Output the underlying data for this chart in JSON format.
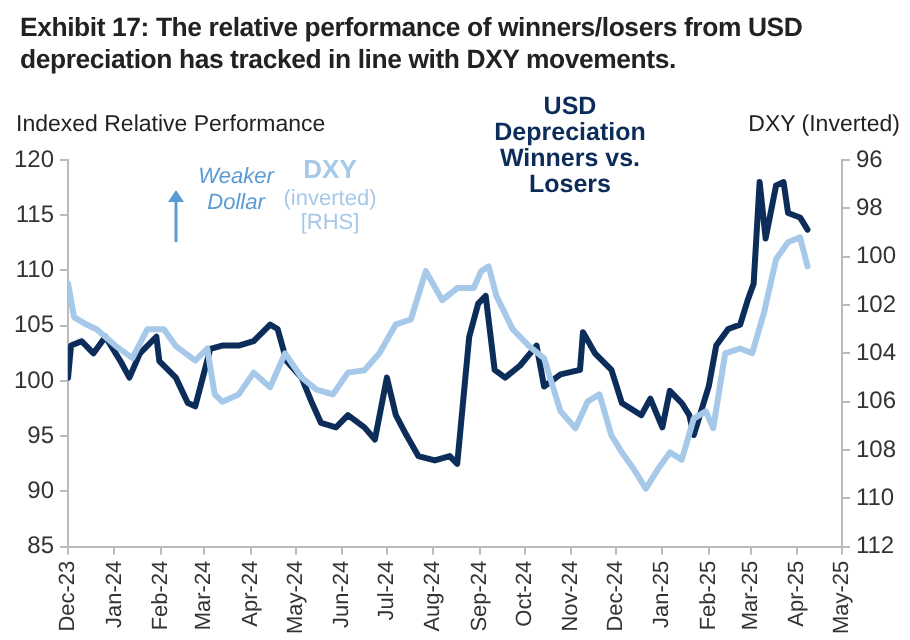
{
  "chart_data": {
    "type": "line",
    "title": "Exhibit 17: The relative performance of winners/losers from USD depreciation has tracked in line with DXY movements.",
    "ylabel": "Indexed Relative Performance",
    "y2label": "DXY (Inverted)",
    "xlim": [
      "2023-12",
      "2025-05"
    ],
    "xticks": [
      {
        "value": "2023-12",
        "label": "Dec-23"
      },
      {
        "value": "2024-01",
        "label": "Jan-24"
      },
      {
        "value": "2024-02",
        "label": "Feb-24"
      },
      {
        "value": "2024-03",
        "label": "Mar-24"
      },
      {
        "value": "2024-04",
        "label": "Apr-24"
      },
      {
        "value": "2024-05",
        "label": "May-24"
      },
      {
        "value": "2024-06",
        "label": "Jun-24"
      },
      {
        "value": "2024-07",
        "label": "Jul-24"
      },
      {
        "value": "2024-08",
        "label": "Aug-24"
      },
      {
        "value": "2024-09",
        "label": "Sep-24"
      },
      {
        "value": "2024-10",
        "label": "Oct-24"
      },
      {
        "value": "2024-11",
        "label": "Nov-24"
      },
      {
        "value": "2024-12",
        "label": "Dec-24"
      },
      {
        "value": "2025-01",
        "label": "Jan-25"
      },
      {
        "value": "2025-02",
        "label": "Feb-25"
      },
      {
        "value": "2025-03",
        "label": "Mar-25"
      },
      {
        "value": "2025-04",
        "label": "Apr-25"
      },
      {
        "value": "2025-05",
        "label": "May-25"
      }
    ],
    "ylim": [
      85,
      120
    ],
    "yticks": [
      85,
      90,
      95,
      100,
      105,
      110,
      115,
      120
    ],
    "y2lim": [
      112,
      96
    ],
    "y2ticks": [
      112,
      110,
      108,
      106,
      104,
      102,
      100,
      98,
      96
    ],
    "grid": false,
    "legend": false,
    "marker": "none",
    "line_style": "solid",
    "annotations": [
      "Weaker Dollar"
    ],
    "series": [
      {
        "name": "DXY (inverted) [RHS]",
        "color": "#a6c9e9",
        "axis": "y2",
        "x": [
          "2023-12-01",
          "2023-12-05",
          "2023-12-13",
          "2023-12-20",
          "2024-01-02",
          "2024-01-13",
          "2024-01-23",
          "2024-02-03",
          "2024-02-11",
          "2024-02-24",
          "2024-03-03",
          "2024-03-08",
          "2024-03-13",
          "2024-03-24",
          "2024-04-03",
          "2024-04-14",
          "2024-04-24",
          "2024-05-05",
          "2024-05-15",
          "2024-05-26",
          "2024-06-05",
          "2024-06-16",
          "2024-06-26",
          "2024-07-07",
          "2024-07-17",
          "2024-07-27",
          "2024-08-07",
          "2024-08-17",
          "2024-08-28",
          "2024-09-02",
          "2024-09-07",
          "2024-09-12",
          "2024-09-23",
          "2024-10-04",
          "2024-10-14",
          "2024-10-25",
          "2024-11-04",
          "2024-11-12",
          "2024-11-20",
          "2024-11-28",
          "2024-12-05",
          "2024-12-13",
          "2024-12-21",
          "2024-12-29",
          "2025-01-06",
          "2025-01-14",
          "2025-01-22",
          "2025-01-30",
          "2025-02-04",
          "2025-02-12",
          "2025-02-22",
          "2025-03-02",
          "2025-03-10",
          "2025-03-18",
          "2025-03-26",
          "2025-04-03",
          "2025-04-08"
        ],
        "values": [
          101.1,
          102.5,
          102.8,
          103,
          103.7,
          104.2,
          103,
          103,
          103.7,
          104.3,
          103.8,
          105.7,
          106,
          105.7,
          104.8,
          105.4,
          104,
          105,
          105.5,
          105.7,
          104.8,
          104.7,
          104,
          102.8,
          102.6,
          100.6,
          101.8,
          101.3,
          101.3,
          100.6,
          100.4,
          101.6,
          103,
          103.7,
          104.2,
          106.4,
          107.1,
          106,
          105.7,
          107.4,
          108.1,
          108.8,
          109.6,
          108.8,
          108.1,
          108.4,
          106.7,
          106.4,
          107.1,
          104,
          103.8,
          104,
          102.3,
          100.1,
          99.4,
          99.2,
          100.4
        ]
      },
      {
        "name": "USD Depreciation Winners vs. Losers",
        "color": "#0c2d5a",
        "x": [
          "2023-12-01",
          "2023-12-03",
          "2023-12-10",
          "2023-12-18",
          "2023-12-26",
          "2024-01-05",
          "2024-01-11",
          "2024-01-18",
          "2024-01-29",
          "2024-01-31",
          "2024-02-11",
          "2024-02-19",
          "2024-02-24",
          "2024-02-29",
          "2024-03-05",
          "2024-03-13",
          "2024-03-24",
          "2024-04-03",
          "2024-04-14",
          "2024-04-19",
          "2024-04-25",
          "2024-05-05",
          "2024-05-12",
          "2024-05-18",
          "2024-05-28",
          "2024-06-05",
          "2024-06-16",
          "2024-06-23",
          "2024-07-01",
          "2024-07-07",
          "2024-07-14",
          "2024-07-22",
          "2024-08-02",
          "2024-08-12",
          "2024-08-17",
          "2024-08-25",
          "2024-08-31",
          "2024-09-05",
          "2024-09-11",
          "2024-09-18",
          "2024-09-28",
          "2024-10-09",
          "2024-10-14",
          "2024-10-25",
          "2024-11-07",
          "2024-11-09",
          "2024-11-17",
          "2024-11-28",
          "2024-12-05",
          "2024-12-18",
          "2024-12-24",
          "2025-01-01",
          "2025-01-06",
          "2025-01-14",
          "2025-01-19",
          "2025-01-22",
          "2025-02-01",
          "2025-02-06",
          "2025-02-14",
          "2025-02-22",
          "2025-02-27",
          "2025-03-03",
          "2025-03-07",
          "2025-03-11",
          "2025-03-18",
          "2025-03-23",
          "2025-03-26",
          "2025-04-03",
          "2025-04-08"
        ],
        "values": [
          100.3,
          103.2,
          103.6,
          102.5,
          104,
          101.8,
          100.3,
          102.5,
          104,
          101.8,
          100.3,
          98,
          97.7,
          100.3,
          102.9,
          103.2,
          103.2,
          103.6,
          105.1,
          104.7,
          101.8,
          100.3,
          98,
          96.2,
          95.8,
          96.9,
          95.8,
          94.7,
          100.3,
          96.9,
          95.1,
          93.2,
          92.8,
          93.2,
          92.5,
          104,
          107,
          107.7,
          101,
          100.3,
          101.4,
          103.2,
          99.5,
          100.6,
          101,
          104.4,
          102.5,
          101,
          98,
          96.9,
          98.4,
          95.8,
          99.1,
          98,
          96.9,
          95.1,
          99.5,
          103.2,
          104.7,
          105.1,
          107.3,
          108.8,
          118,
          112.9,
          117.7,
          118,
          115.2,
          114.8,
          113.7
        ]
      }
    ]
  }
}
